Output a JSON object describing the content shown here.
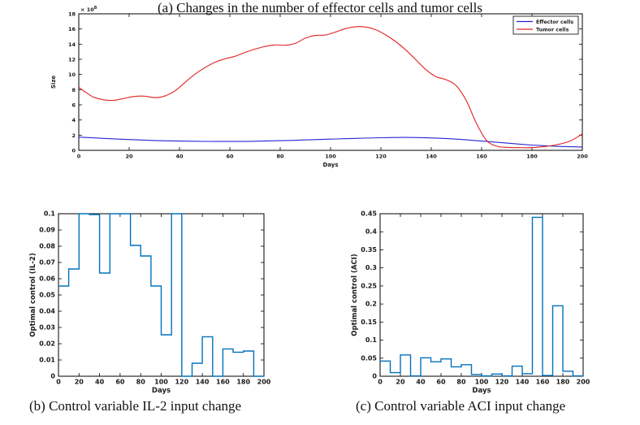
{
  "captions": {
    "a": "(a) Changes in the number of effector cells and tumor cells",
    "b": "(b) Control variable IL-2 input change",
    "c": "(c) Control variable ACI input change"
  },
  "chart_data": [
    {
      "id": "cells",
      "type": "line",
      "title": "",
      "xlabel": "Days",
      "ylabel": "Size",
      "y_scale_exponent": "8",
      "y_scale_label": "×10^8",
      "xlim": [
        0,
        200
      ],
      "ylim": [
        0,
        18
      ],
      "xticks": [
        0,
        20,
        40,
        60,
        80,
        100,
        120,
        140,
        160,
        180,
        200
      ],
      "yticks": [
        0,
        2,
        4,
        6,
        8,
        10,
        12,
        14,
        16,
        18
      ],
      "grid": false,
      "legend": {
        "position": "top-right",
        "entries": [
          {
            "name": "Effector cells",
            "color": "#2424d6"
          },
          {
            "name": "Tumor cells",
            "color": "#e32222"
          }
        ]
      },
      "series": [
        {
          "name": "Effector cells",
          "color": "#2424d6",
          "x": [
            0,
            10,
            20,
            30,
            40,
            50,
            60,
            70,
            80,
            90,
            100,
            110,
            120,
            125,
            130,
            140,
            150,
            160,
            170,
            180,
            190,
            200
          ],
          "y": [
            1.75,
            1.58,
            1.42,
            1.3,
            1.22,
            1.18,
            1.17,
            1.2,
            1.27,
            1.37,
            1.48,
            1.58,
            1.66,
            1.69,
            1.7,
            1.63,
            1.48,
            1.22,
            0.95,
            0.7,
            0.53,
            0.44
          ]
        },
        {
          "name": "Tumor cells",
          "color": "#e32222",
          "x": [
            0,
            3,
            6,
            10,
            14,
            18,
            22,
            26,
            30,
            34,
            38,
            42,
            46,
            50,
            54,
            58,
            62,
            66,
            70,
            74,
            78,
            82,
            86,
            90,
            94,
            98,
            102,
            106,
            110,
            114,
            118,
            122,
            126,
            130,
            134,
            138,
            142,
            146,
            150,
            154,
            158,
            162,
            166,
            170,
            175,
            180,
            185,
            190,
            195,
            200
          ],
          "y": [
            8.3,
            7.6,
            7.0,
            6.65,
            6.6,
            6.85,
            7.1,
            7.15,
            6.95,
            7.15,
            7.8,
            8.9,
            10.0,
            10.9,
            11.6,
            12.05,
            12.4,
            12.9,
            13.35,
            13.7,
            13.9,
            13.85,
            14.1,
            14.8,
            15.15,
            15.2,
            15.6,
            16.05,
            16.3,
            16.25,
            15.9,
            15.2,
            14.3,
            13.2,
            11.9,
            10.6,
            9.7,
            9.3,
            8.5,
            6.5,
            3.5,
            1.3,
            0.55,
            0.4,
            0.35,
            0.35,
            0.5,
            0.75,
            1.2,
            2.15
          ]
        }
      ]
    },
    {
      "id": "il2",
      "type": "stairs",
      "title": "",
      "xlabel": "Days",
      "ylabel": "Optimal control (IL-2)",
      "xlim": [
        0,
        200
      ],
      "ylim": [
        0,
        0.1
      ],
      "xticks": [
        0,
        20,
        40,
        60,
        80,
        100,
        120,
        140,
        160,
        180,
        200
      ],
      "yticks": [
        0,
        0.01,
        0.02,
        0.03,
        0.04,
        0.05,
        0.06,
        0.07,
        0.08,
        0.09,
        0.1
      ],
      "grid": false,
      "color": "#0072BD",
      "edges": [
        0,
        10,
        20,
        30,
        40,
        50,
        60,
        70,
        80,
        90,
        100,
        110,
        120,
        130,
        140,
        150,
        160,
        170,
        180,
        190,
        200
      ],
      "values": [
        0.0555,
        0.066,
        0.1,
        0.0995,
        0.0635,
        0.1,
        0.1,
        0.0805,
        0.074,
        0.0555,
        0.0255,
        0.1,
        0,
        0.008,
        0.0243,
        0,
        0.0168,
        0.0148,
        0.0155,
        0
      ]
    },
    {
      "id": "aci",
      "type": "stairs",
      "title": "",
      "xlabel": "Days",
      "ylabel": "Optimal control (ACI)",
      "xlim": [
        0,
        200
      ],
      "ylim": [
        0,
        0.45
      ],
      "xticks": [
        0,
        20,
        40,
        60,
        80,
        100,
        120,
        140,
        160,
        180,
        200
      ],
      "yticks": [
        0,
        0.05,
        0.1,
        0.15,
        0.2,
        0.25,
        0.3,
        0.35,
        0.4,
        0.45
      ],
      "grid": false,
      "color": "#0072BD",
      "edges": [
        0,
        10,
        20,
        30,
        40,
        50,
        60,
        70,
        80,
        90,
        100,
        110,
        120,
        130,
        140,
        150,
        160,
        170,
        180,
        190,
        200
      ],
      "values": [
        0.042,
        0.01,
        0.059,
        0.001,
        0.051,
        0.04,
        0.048,
        0.026,
        0.032,
        0.005,
        0.001,
        0.006,
        0.001,
        0.028,
        0.007,
        0.44,
        0.002,
        0.195,
        0.014,
        0.001
      ]
    }
  ]
}
